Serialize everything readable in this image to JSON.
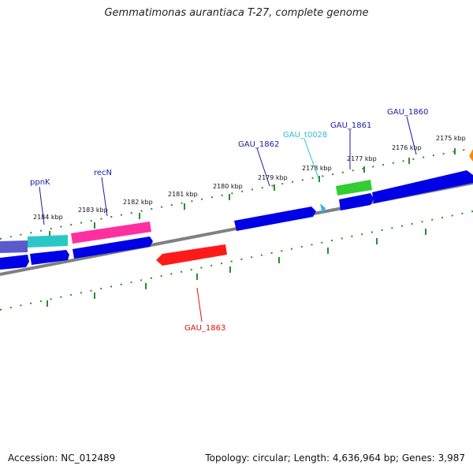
{
  "title": "Gemmatimonas aurantiaca T-27, complete genome",
  "footer": {
    "accession": "Accession: NC_012489",
    "summary": "Topology: circular; Length: 4,636,964 bp; Genes: 3,987"
  },
  "colors": {
    "dna_line": "#7f7f7f",
    "ruler": "#2e8b2e",
    "cds": "#0000e6",
    "label_default": "#1a1aa6",
    "trna_label": "#33b5e5",
    "highlight_red": "#ff1a1a",
    "pink": "#ff2fa0",
    "cyan": "#2bc7c7",
    "green": "#33cc33"
  },
  "ticks": [
    {
      "label": "2175 kbp"
    },
    {
      "label": "2176 kbp"
    },
    {
      "label": "2177 kbp"
    },
    {
      "label": "2178 kbp"
    },
    {
      "label": "2179 kbp"
    },
    {
      "label": "2180 kbp"
    },
    {
      "label": "2181 kbp"
    },
    {
      "label": "2182 kbp"
    },
    {
      "label": "2183 kbp"
    },
    {
      "label": "2184 kbp"
    }
  ],
  "genes": [
    {
      "label": "GAU_1860",
      "color": "#1a1aa6"
    },
    {
      "label": "GAU_1861",
      "color": "#1a1aa6"
    },
    {
      "label": "GAU_t0028",
      "color": "#33b5e5"
    },
    {
      "label": "GAU_1862",
      "color": "#1a1aa6"
    },
    {
      "label": "recN",
      "color": "#1a1aa6"
    },
    {
      "label": "ppnK",
      "color": "#1a1aa6"
    },
    {
      "label": "GAU_1863",
      "color": "#dd1111"
    }
  ]
}
